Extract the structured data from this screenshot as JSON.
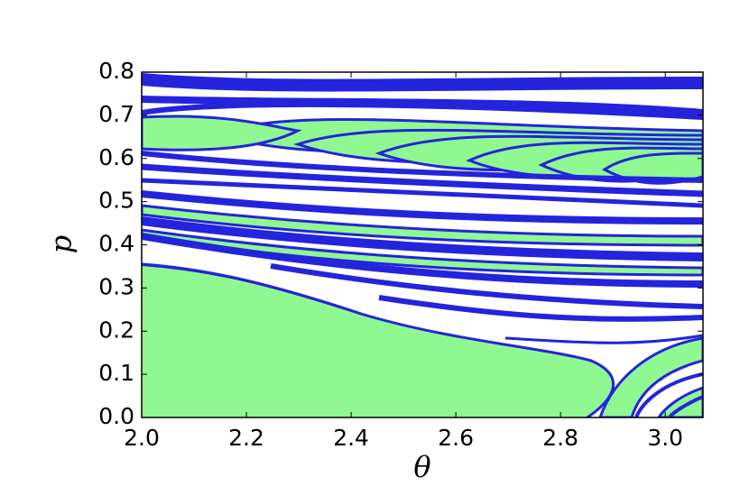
{
  "chart_data": {
    "type": "contour",
    "xlabel": "θ",
    "ylabel": "p",
    "xlim": [
      2.0,
      3.072
    ],
    "ylim": [
      0.0,
      0.8
    ],
    "xticks": [
      {
        "value": 2.0,
        "label": "2.0"
      },
      2.2,
      2.4,
      2.6,
      2.8,
      {
        "value": 3.0,
        "label": "3.0"
      }
    ],
    "yticks": [
      {
        "value": 0.0,
        "label": "0.0"
      },
      0.1,
      0.2,
      0.3,
      0.4,
      0.5,
      0.6,
      0.7,
      0.8
    ]
  }
}
